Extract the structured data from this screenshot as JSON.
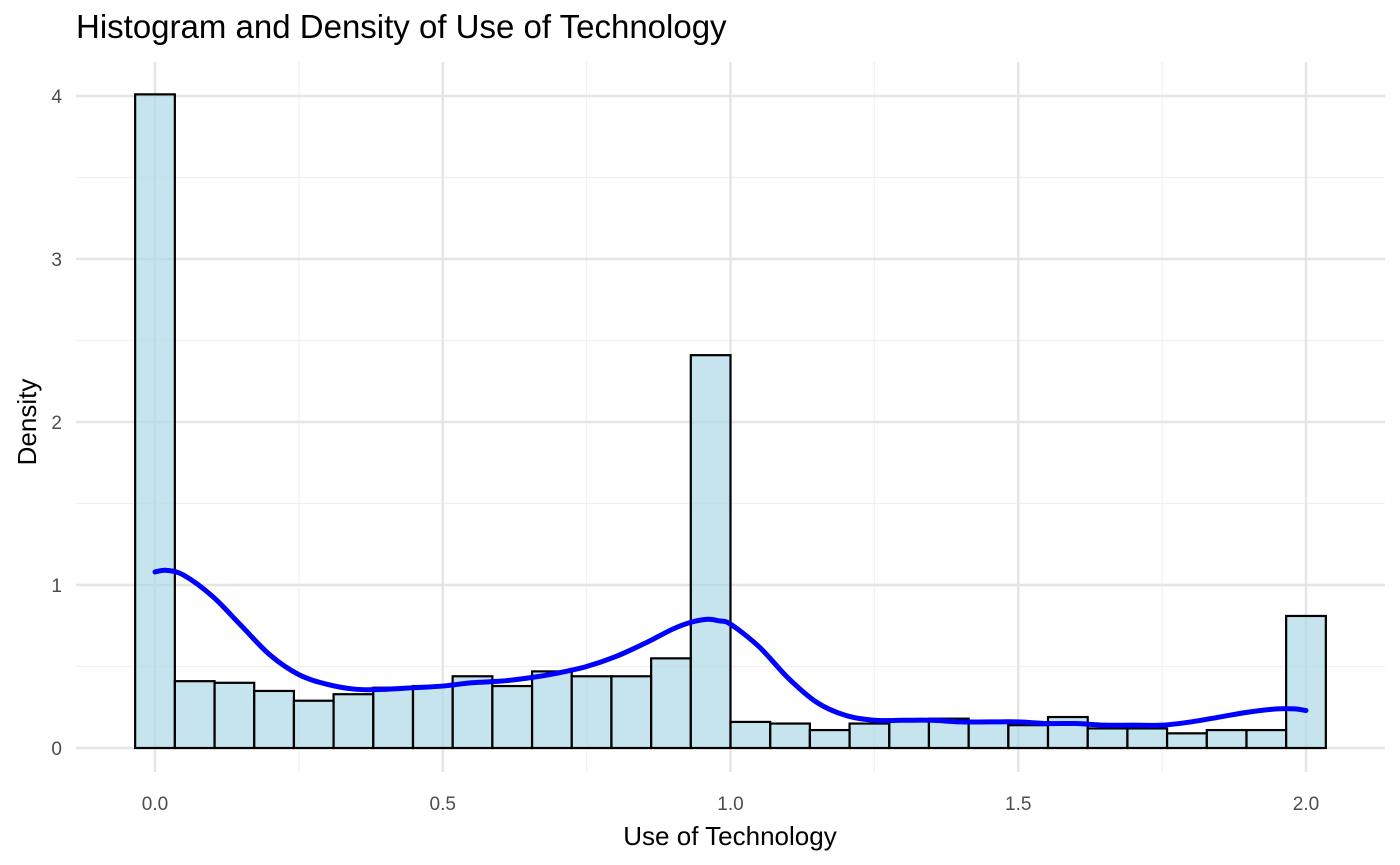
{
  "chart_data": {
    "type": "bar",
    "title": "Histogram and Density of Use of Technology",
    "xlabel": "Use of Technology",
    "ylabel": "Density",
    "xlim": [
      -0.07,
      2.1
    ],
    "ylim": [
      -0.08,
      4.2
    ],
    "x_ticks": [
      0.0,
      0.5,
      1.0,
      1.5,
      2.0
    ],
    "x_tick_labels": [
      "0.0",
      "0.5",
      "1.0",
      "1.5",
      "2.0"
    ],
    "y_ticks": [
      0,
      1,
      2,
      3,
      4
    ],
    "y_tick_labels": [
      "0",
      "1",
      "2",
      "3",
      "4"
    ],
    "grid": true,
    "bin_width": 0.069,
    "bins": [
      {
        "x0": -0.0345,
        "x1": 0.0345,
        "value": 4.01
      },
      {
        "x0": 0.0345,
        "x1": 0.1035,
        "value": 0.41
      },
      {
        "x0": 0.1035,
        "x1": 0.1724,
        "value": 0.4
      },
      {
        "x0": 0.1724,
        "x1": 0.2414,
        "value": 0.35
      },
      {
        "x0": 0.2414,
        "x1": 0.3103,
        "value": 0.29
      },
      {
        "x0": 0.3103,
        "x1": 0.3793,
        "value": 0.33
      },
      {
        "x0": 0.3793,
        "x1": 0.4483,
        "value": 0.37
      },
      {
        "x0": 0.4483,
        "x1": 0.5172,
        "value": 0.38
      },
      {
        "x0": 0.5172,
        "x1": 0.5862,
        "value": 0.44
      },
      {
        "x0": 0.5862,
        "x1": 0.6552,
        "value": 0.38
      },
      {
        "x0": 0.6552,
        "x1": 0.7241,
        "value": 0.47
      },
      {
        "x0": 0.7241,
        "x1": 0.7931,
        "value": 0.44
      },
      {
        "x0": 0.7931,
        "x1": 0.8621,
        "value": 0.44
      },
      {
        "x0": 0.8621,
        "x1": 0.931,
        "value": 0.55
      },
      {
        "x0": 0.931,
        "x1": 1.0,
        "value": 2.41
      },
      {
        "x0": 1.0,
        "x1": 1.069,
        "value": 0.16
      },
      {
        "x0": 1.069,
        "x1": 1.1379,
        "value": 0.15
      },
      {
        "x0": 1.1379,
        "x1": 1.2069,
        "value": 0.11
      },
      {
        "x0": 1.2069,
        "x1": 1.2759,
        "value": 0.15
      },
      {
        "x0": 1.2759,
        "x1": 1.3448,
        "value": 0.17
      },
      {
        "x0": 1.3448,
        "x1": 1.4138,
        "value": 0.18
      },
      {
        "x0": 1.4138,
        "x1": 1.4828,
        "value": 0.16
      },
      {
        "x0": 1.4828,
        "x1": 1.5517,
        "value": 0.14
      },
      {
        "x0": 1.5517,
        "x1": 1.6207,
        "value": 0.19
      },
      {
        "x0": 1.6207,
        "x1": 1.6897,
        "value": 0.12
      },
      {
        "x0": 1.6897,
        "x1": 1.7586,
        "value": 0.12
      },
      {
        "x0": 1.7586,
        "x1": 1.8276,
        "value": 0.09
      },
      {
        "x0": 1.8276,
        "x1": 1.8966,
        "value": 0.11
      },
      {
        "x0": 1.8966,
        "x1": 1.9655,
        "value": 0.11
      },
      {
        "x0": 1.9655,
        "x1": 2.0345,
        "value": 0.81
      }
    ],
    "density_curve": {
      "x": [
        0.0,
        0.02,
        0.05,
        0.1,
        0.15,
        0.2,
        0.25,
        0.3,
        0.35,
        0.4,
        0.45,
        0.5,
        0.55,
        0.6,
        0.65,
        0.7,
        0.75,
        0.8,
        0.85,
        0.9,
        0.93,
        0.96,
        0.98,
        1.0,
        1.05,
        1.1,
        1.15,
        1.2,
        1.25,
        1.3,
        1.35,
        1.4,
        1.45,
        1.5,
        1.55,
        1.6,
        1.65,
        1.7,
        1.75,
        1.8,
        1.85,
        1.9,
        1.95,
        1.98,
        2.0
      ],
      "y": [
        1.08,
        1.09,
        1.06,
        0.93,
        0.75,
        0.57,
        0.45,
        0.39,
        0.36,
        0.36,
        0.37,
        0.38,
        0.4,
        0.41,
        0.43,
        0.46,
        0.5,
        0.56,
        0.64,
        0.73,
        0.77,
        0.79,
        0.78,
        0.76,
        0.62,
        0.43,
        0.28,
        0.2,
        0.17,
        0.17,
        0.17,
        0.16,
        0.16,
        0.16,
        0.15,
        0.15,
        0.14,
        0.14,
        0.14,
        0.16,
        0.19,
        0.22,
        0.24,
        0.24,
        0.23
      ]
    },
    "colors": {
      "bar_fill": "#add8e6",
      "bar_stroke": "#000000",
      "density_line": "#0000ff",
      "grid_major": "#e5e5e5",
      "grid_minor": "#f0f0f0"
    }
  }
}
